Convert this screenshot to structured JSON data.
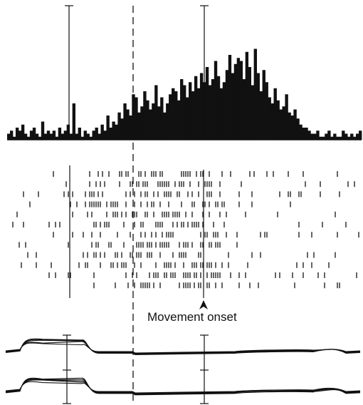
{
  "chart_data": {
    "type": "bar",
    "title": "",
    "xlabel": "",
    "ylabel": "",
    "annotations": {
      "movement_onset": "Movement onset"
    },
    "histogram": {
      "bin_count": 125,
      "values": [
        2,
        3,
        1,
        4,
        3,
        5,
        2,
        1,
        3,
        4,
        2,
        1,
        6,
        2,
        3,
        2,
        3,
        1,
        4,
        2,
        3,
        5,
        2,
        12,
        2,
        4,
        1,
        3,
        2,
        1,
        3,
        4,
        2,
        5,
        3,
        8,
        4,
        6,
        5,
        9,
        7,
        12,
        10,
        8,
        15,
        14,
        9,
        11,
        16,
        13,
        10,
        12,
        18,
        11,
        14,
        9,
        12,
        15,
        17,
        16,
        13,
        20,
        18,
        14,
        19,
        16,
        21,
        17,
        22,
        19,
        24,
        18,
        20,
        26,
        21,
        17,
        19,
        23,
        28,
        22,
        25,
        27,
        26,
        20,
        29,
        24,
        18,
        30,
        22,
        16,
        23,
        19,
        14,
        12,
        17,
        13,
        10,
        11,
        15,
        9,
        8,
        10,
        7,
        5,
        4,
        4,
        3,
        2,
        2,
        3,
        1,
        1,
        2,
        3,
        1,
        2,
        1,
        1,
        3,
        2,
        1,
        2,
        1,
        2,
        3
      ],
      "ymax": 32
    },
    "raster": {
      "trials": 12
    },
    "traces": {
      "channels": 2
    }
  }
}
